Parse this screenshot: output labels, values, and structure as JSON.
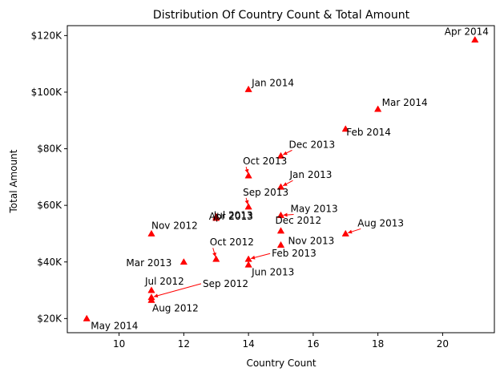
{
  "chart_data": {
    "type": "scatter",
    "title": "Distribution Of Country Count & Total Amount",
    "xlabel": "Country Count",
    "ylabel": "Total Amount",
    "xlim": [
      8.4,
      21.6
    ],
    "ylim": [
      15000,
      123500
    ],
    "x_ticks": [
      10,
      12,
      14,
      16,
      18,
      20
    ],
    "x_tick_labels": [
      "10",
      "12",
      "14",
      "16",
      "18",
      "20"
    ],
    "y_ticks": [
      20000,
      40000,
      60000,
      80000,
      100000,
      120000
    ],
    "y_tick_labels": [
      "$20K",
      "$40K",
      "$60K",
      "$80K",
      "$100K",
      "$120K"
    ],
    "grid": false,
    "marker": "triangle-up",
    "marker_color": "#ff0000",
    "points": [
      {
        "label": "Apr 2014",
        "x": 21,
        "y": 118500
      },
      {
        "label": "Jan 2014",
        "x": 14,
        "y": 101000
      },
      {
        "label": "Mar 2014",
        "x": 18,
        "y": 94000
      },
      {
        "label": "Feb 2014",
        "x": 17,
        "y": 87000
      },
      {
        "label": "Dec 2013",
        "x": 15,
        "y": 77500
      },
      {
        "label": "Oct 2013",
        "x": 14,
        "y": 70500
      },
      {
        "label": "Jan 2013",
        "x": 15,
        "y": 66500
      },
      {
        "label": "Sep 2013",
        "x": 14,
        "y": 59500
      },
      {
        "label": "May 2013",
        "x": 15,
        "y": 56500
      },
      {
        "label": "Apr 2013",
        "x": 13,
        "y": 55500
      },
      {
        "label": "Jul 2013",
        "x": 13,
        "y": 56000
      },
      {
        "label": "Dec 2012",
        "x": 15,
        "y": 51000
      },
      {
        "label": "Nov 2012",
        "x": 11,
        "y": 50000
      },
      {
        "label": "Aug 2013",
        "x": 17,
        "y": 50000
      },
      {
        "label": "Nov 2013",
        "x": 15,
        "y": 46000
      },
      {
        "label": "Oct 2012",
        "x": 13,
        "y": 41000
      },
      {
        "label": "Feb 2013",
        "x": 14,
        "y": 41000
      },
      {
        "label": "Mar 2013",
        "x": 12,
        "y": 40000
      },
      {
        "label": "Jun 2013",
        "x": 14,
        "y": 39000
      },
      {
        "label": "Jul 2012",
        "x": 11,
        "y": 30000
      },
      {
        "label": "Sep 2012",
        "x": 11,
        "y": 27500
      },
      {
        "label": "Aug 2012",
        "x": 11,
        "y": 26500
      },
      {
        "label": "May 2014",
        "x": 9,
        "y": 20000
      }
    ]
  }
}
